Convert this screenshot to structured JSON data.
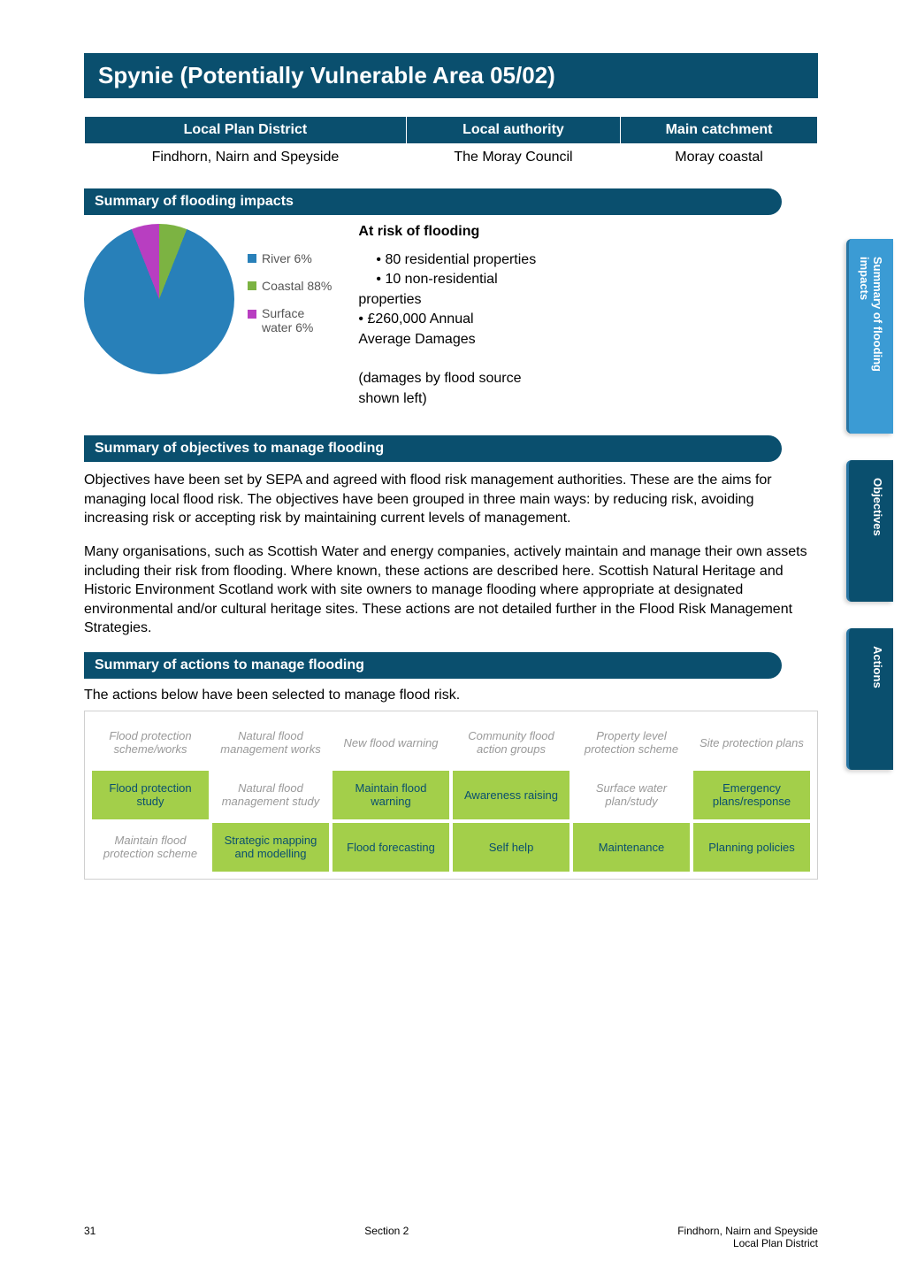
{
  "title": "Spynie (Potentially Vulnerable Area 05/02)",
  "district_table": {
    "headers": [
      "Local Plan District",
      "Local authority",
      "Main catchment"
    ],
    "row": [
      "Findhorn, Nairn and Speyside",
      "The Moray Council",
      "Moray coastal"
    ]
  },
  "impacts": {
    "header": "Summary of flooding impacts",
    "chart": {
      "type": "pie",
      "series": [
        {
          "label": "River 6%",
          "value": 6,
          "color": "#7cb342"
        },
        {
          "label": "Coastal 88%",
          "value": 88,
          "color": "#2880b9"
        },
        {
          "label": "Surface water 6%",
          "value": 6,
          "color": "#b83ec1"
        }
      ]
    },
    "risk_title": "At risk of flooding",
    "risk_lines": [
      "•   80 residential properties",
      "•   10 non-residential",
      "properties",
      "•   £260,000 Annual",
      "Average Damages"
    ],
    "damages_note1": "(damages by flood source",
    "damages_note2": "shown left)"
  },
  "objectives": {
    "header": "Summary of objectives to manage flooding",
    "para1": "Objectives have been set by SEPA and agreed with flood risk management authorities. These are the aims for managing local flood risk. The objectives have been grouped in three main ways: by reducing risk, avoiding increasing risk or accepting risk by maintaining current levels of management.",
    "para2": "Many organisations, such as Scottish Water and energy companies, actively maintain and manage their own assets including their risk from flooding. Where known, these actions are described here. Scottish Natural Heritage and Historic Environment Scotland work with site owners to manage flooding where appropriate at designated environmental and/or cultural heritage sites. These actions are not detailed further in the Flood Risk Management Strategies."
  },
  "actions": {
    "header": "Summary of actions to manage flooding",
    "intro": "The actions below have been selected to manage flood risk.",
    "grid": [
      [
        {
          "label": "Flood protection scheme/works",
          "selected": false
        },
        {
          "label": "Natural flood management works",
          "selected": false
        },
        {
          "label": "New flood warning",
          "selected": false
        },
        {
          "label": "Community flood action groups",
          "selected": false
        },
        {
          "label": "Property level protection scheme",
          "selected": false
        },
        {
          "label": "Site protection plans",
          "selected": false
        }
      ],
      [
        {
          "label": "Flood protection study",
          "selected": true
        },
        {
          "label": "Natural flood management study",
          "selected": false
        },
        {
          "label": "Maintain flood warning",
          "selected": true
        },
        {
          "label": "Awareness raising",
          "selected": true
        },
        {
          "label": "Surface water plan/study",
          "selected": false
        },
        {
          "label": "Emergency plans/response",
          "selected": true
        }
      ],
      [
        {
          "label": "Maintain flood protection scheme",
          "selected": false
        },
        {
          "label": "Strategic mapping and modelling",
          "selected": true
        },
        {
          "label": "Flood forecasting",
          "selected": true
        },
        {
          "label": "Self help",
          "selected": true
        },
        {
          "label": "Maintenance",
          "selected": true
        },
        {
          "label": "Planning policies",
          "selected": true
        }
      ]
    ]
  },
  "side_tabs": [
    "Summary of flooding impacts",
    "Objectives",
    "Actions"
  ],
  "footer": {
    "page": "31",
    "section": "Section 2",
    "right1": "Findhorn, Nairn and Speyside",
    "right2": "Local Plan District"
  },
  "colors": {
    "primary": "#0a4f6e",
    "tab_light": "#3b9bd4",
    "selected_green": "#a3cf4a"
  }
}
